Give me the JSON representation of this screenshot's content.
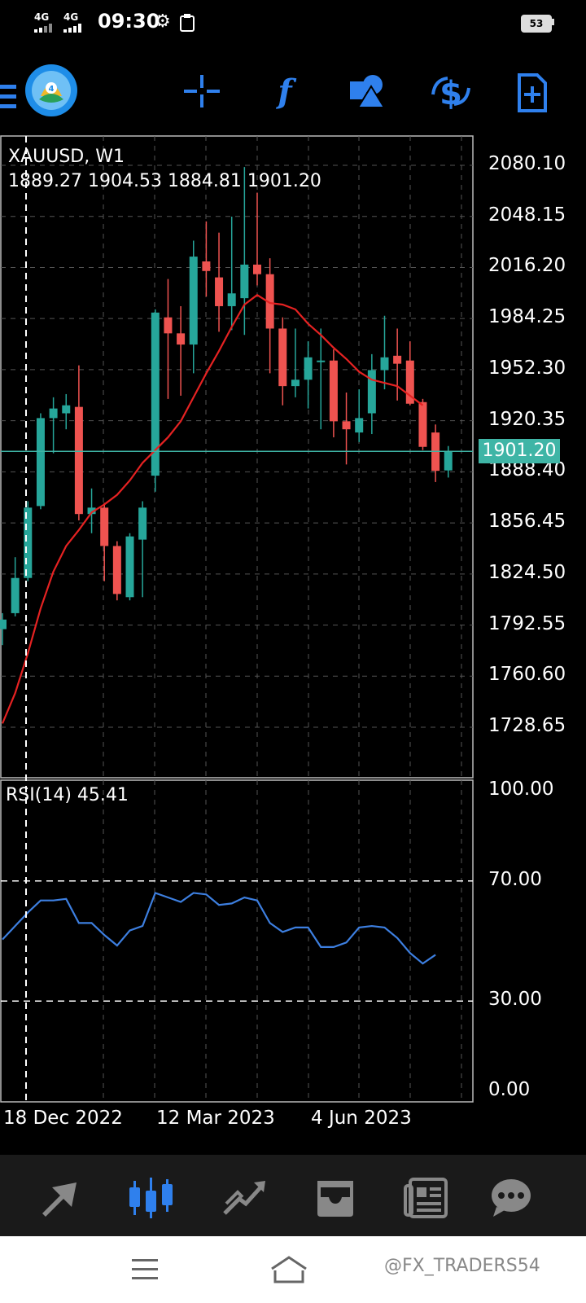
{
  "status_bar": {
    "signal1": "4G",
    "signal2": "4G",
    "time": "09:30",
    "battery": "53"
  },
  "toolbar": {
    "icons": [
      "menu-icon",
      "metatrader-logo",
      "crosshair-icon",
      "indicators-icon",
      "objects-icon",
      "symbols-icon",
      "new-order-icon"
    ]
  },
  "chart": {
    "symbol_label": "XAUUSD, W1",
    "ohlc_label": "1889.27 1904.53 1884.81 1901.20",
    "current_price": "1901.20",
    "price_axis": [
      "2080.10",
      "2048.15",
      "2016.20",
      "1984.25",
      "1952.30",
      "1920.35",
      "1888.40",
      "1856.45",
      "1824.50",
      "1792.55",
      "1760.60",
      "1728.65"
    ],
    "rsi_label": "RSI(14) 45.41",
    "rsi_axis": [
      "100.00",
      "70.00",
      "30.00",
      "0.00"
    ],
    "date_axis": [
      "18 Dec 2022",
      "12 Mar 2023",
      "4 Jun 2023"
    ],
    "colors": {
      "bull": "#26a69a",
      "bear": "#ef5350",
      "ma": "#e52222",
      "rsi": "#3d7fe0",
      "price_line": "#3fb5a6",
      "grid": "#555555",
      "accent": "#2f80ed"
    }
  },
  "chart_data": {
    "type": "candlestick",
    "symbol": "XAUUSD",
    "timeframe": "W1",
    "ohlc": [
      {
        "o": 1790,
        "h": 1800,
        "l": 1780,
        "c": 1796
      },
      {
        "o": 1800,
        "h": 1835,
        "l": 1798,
        "c": 1822
      },
      {
        "o": 1822,
        "h": 1870,
        "l": 1820,
        "c": 1866
      },
      {
        "o": 1867,
        "h": 1925,
        "l": 1865,
        "c": 1922
      },
      {
        "o": 1922,
        "h": 1935,
        "l": 1900,
        "c": 1928
      },
      {
        "o": 1925,
        "h": 1937,
        "l": 1915,
        "c": 1930
      },
      {
        "o": 1929,
        "h": 1955,
        "l": 1858,
        "c": 1862
      },
      {
        "o": 1862,
        "h": 1878,
        "l": 1850,
        "c": 1866
      },
      {
        "o": 1866,
        "h": 1869,
        "l": 1820,
        "c": 1842
      },
      {
        "o": 1842,
        "h": 1845,
        "l": 1808,
        "c": 1812
      },
      {
        "o": 1810,
        "h": 1850,
        "l": 1808,
        "c": 1848
      },
      {
        "o": 1846,
        "h": 1870,
        "l": 1810,
        "c": 1866
      },
      {
        "o": 1886,
        "h": 1990,
        "l": 1876,
        "c": 1988
      },
      {
        "o": 1985,
        "h": 2009,
        "l": 1934,
        "c": 1975
      },
      {
        "o": 1975,
        "h": 1992,
        "l": 1936,
        "c": 1968
      },
      {
        "o": 1968,
        "h": 2033,
        "l": 1950,
        "c": 2023
      },
      {
        "o": 2020,
        "h": 2045,
        "l": 1998,
        "c": 2014
      },
      {
        "o": 2010,
        "h": 2038,
        "l": 1976,
        "c": 1992
      },
      {
        "o": 1992,
        "h": 2048,
        "l": 1977,
        "c": 2000
      },
      {
        "o": 1997,
        "h": 2079,
        "l": 1974,
        "c": 2018
      },
      {
        "o": 2018,
        "h": 2063,
        "l": 2005,
        "c": 2012
      },
      {
        "o": 2012,
        "h": 2022,
        "l": 1950,
        "c": 1978
      },
      {
        "o": 1978,
        "h": 1985,
        "l": 1930,
        "c": 1942
      },
      {
        "o": 1942,
        "h": 1978,
        "l": 1935,
        "c": 1946
      },
      {
        "o": 1946,
        "h": 1970,
        "l": 1928,
        "c": 1960
      },
      {
        "o": 1958,
        "h": 1978,
        "l": 1915,
        "c": 1958
      },
      {
        "o": 1958,
        "h": 1965,
        "l": 1910,
        "c": 1920
      },
      {
        "o": 1920,
        "h": 1938,
        "l": 1893,
        "c": 1915
      },
      {
        "o": 1913,
        "h": 1940,
        "l": 1907,
        "c": 1922
      },
      {
        "o": 1925,
        "h": 1962,
        "l": 1912,
        "c": 1952
      },
      {
        "o": 1952,
        "h": 1986,
        "l": 1940,
        "c": 1960
      },
      {
        "o": 1961,
        "h": 1978,
        "l": 1933,
        "c": 1956
      },
      {
        "o": 1958,
        "h": 1970,
        "l": 1930,
        "c": 1931
      },
      {
        "o": 1932,
        "h": 1934,
        "l": 1902,
        "c": 1904
      },
      {
        "o": 1913,
        "h": 1918,
        "l": 1882,
        "c": 1889
      },
      {
        "o": 1889.27,
        "h": 1904.53,
        "l": 1884.81,
        "c": 1901.2
      }
    ],
    "ma": [
      1731,
      1750,
      1775,
      1803,
      1826,
      1842,
      1852,
      1863,
      1868,
      1874,
      1883,
      1894,
      1902,
      1910,
      1920,
      1935,
      1950,
      1964,
      1979,
      1993,
      1999,
      1994,
      1993,
      1990,
      1981,
      1974,
      1966,
      1959,
      1951,
      1946,
      1944,
      1942,
      1936,
      1930
    ],
    "rsi": [
      50.5,
      55,
      59.5,
      63.5,
      63.5,
      64,
      56,
      56,
      52,
      48.5,
      53.5,
      55,
      66,
      64.5,
      63,
      66,
      65.5,
      62,
      62.5,
      64.5,
      63.5,
      56,
      53,
      54.5,
      54.5,
      48,
      48,
      49.5,
      54.5,
      55,
      54.5,
      51,
      46,
      42.5,
      45.41
    ],
    "ylim": [
      1700,
      2100
    ],
    "rsi_ylim": [
      0,
      100
    ],
    "rsi_levels": [
      70,
      30
    ]
  },
  "bottom_nav": {
    "items": [
      "quotes-icon",
      "chart-icon",
      "trade-icon",
      "history-icon",
      "news-icon",
      "messages-icon"
    ]
  },
  "watermark": "@FX_TRADERS54"
}
